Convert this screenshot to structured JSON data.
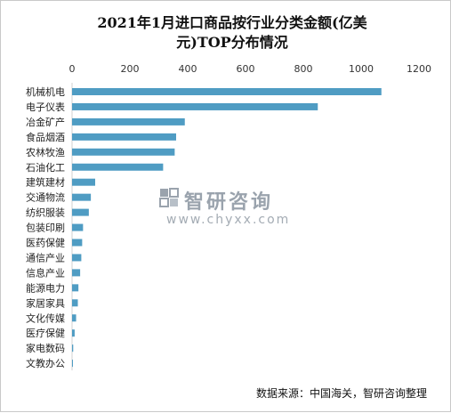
{
  "chart_data": {
    "type": "bar",
    "orientation": "horizontal",
    "title_lines": [
      "2021年1月进口商品按行业分类金额(亿美",
      "元)TOP分布情况"
    ],
    "categories": [
      "机械机电",
      "电子仪表",
      "冶金矿产",
      "食品烟酒",
      "农林牧渔",
      "石油化工",
      "建筑建材",
      "交通物流",
      "纺织服装",
      "包装印刷",
      "医药保健",
      "通信产业",
      "信息产业",
      "能源电力",
      "家居家具",
      "文化传媒",
      "医疗保健",
      "家电数码",
      "文教办公"
    ],
    "values": [
      1070,
      850,
      390,
      360,
      355,
      315,
      80,
      65,
      58,
      38,
      35,
      32,
      28,
      22,
      20,
      14,
      9,
      4,
      3
    ],
    "xlim": [
      0,
      1200
    ],
    "xticks": [
      "0",
      "200",
      "400",
      "600",
      "800",
      "1000",
      "1200"
    ],
    "x_axis_position": "top",
    "grid": false,
    "legend": "none",
    "bar_color": "#4f9cc3"
  },
  "watermark": {
    "brand": "智研咨询",
    "url": "www.chyxx.com",
    "icon": "chyxx-logo-icon"
  },
  "source_text": "数据来源：中国海关，智研咨询整理"
}
